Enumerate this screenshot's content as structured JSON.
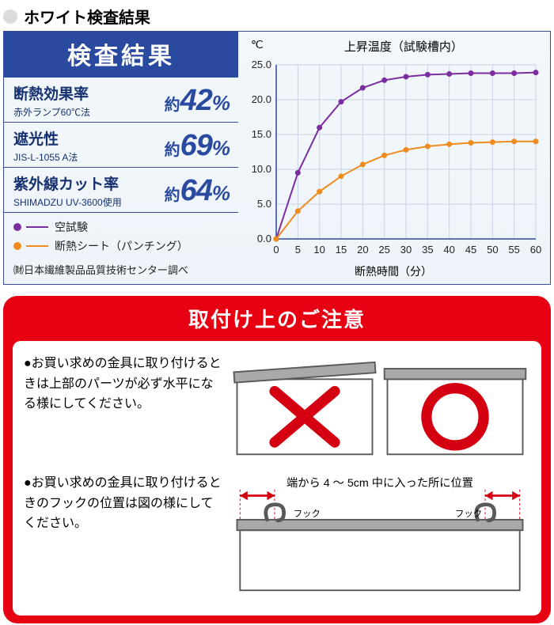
{
  "header": {
    "title": "ホワイト検査結果"
  },
  "inspect": {
    "panel_title": "検査結果",
    "title_bg": "#2a4aa0",
    "title_color": "#ffffff",
    "border_color": "#3a4a9a",
    "stats": [
      {
        "label": "断熱効果率",
        "sub": "赤外ランプ60℃法",
        "prefix": "約",
        "value": "42",
        "suffix": "%"
      },
      {
        "label": "遮光性",
        "sub": "JIS-L-1055 A法",
        "prefix": "約",
        "value": "69",
        "suffix": "%"
      },
      {
        "label": "紫外線カット率",
        "sub": "SHIMADZU UV-3600使用",
        "prefix": "約",
        "value": "64",
        "suffix": "%"
      }
    ],
    "legend": [
      {
        "label": "空試験",
        "color": "#7a2ea0"
      },
      {
        "label": "断熱シート（パンチング）",
        "color": "#ef8b1f"
      }
    ],
    "source": "㈶日本繊維製品品質技術センター調べ"
  },
  "chart": {
    "type": "line",
    "title": "上昇温度（試験槽内）",
    "xaxis_label": "断熱時間（分）",
    "y_unit": "℃",
    "x_ticks": [
      0,
      5,
      10,
      15,
      20,
      25,
      30,
      35,
      40,
      45,
      50,
      55,
      60
    ],
    "y_ticks": [
      0.0,
      5.0,
      10.0,
      15.0,
      20.0,
      25.0
    ],
    "xlim": [
      0,
      60
    ],
    "ylim": [
      0,
      25
    ],
    "grid_color": "#c8d2e6",
    "axis_color": "#2a4aa0",
    "marker_radius": 3.5,
    "line_width": 2,
    "series": [
      {
        "name": "空試験",
        "color": "#7a2ea0",
        "x": [
          0,
          5,
          10,
          15,
          20,
          25,
          30,
          35,
          40,
          45,
          50,
          55,
          60
        ],
        "y": [
          0,
          9.5,
          16.0,
          19.7,
          21.7,
          22.8,
          23.3,
          23.6,
          23.7,
          23.8,
          23.8,
          23.8,
          23.9
        ]
      },
      {
        "name": "断熱シート",
        "color": "#ef8b1f",
        "x": [
          0,
          5,
          10,
          15,
          20,
          25,
          30,
          35,
          40,
          45,
          50,
          55,
          60
        ],
        "y": [
          0,
          4.0,
          6.8,
          9.0,
          10.7,
          12.0,
          12.8,
          13.3,
          13.6,
          13.8,
          13.9,
          14.0,
          14.0
        ]
      }
    ],
    "tick_fontsize": 13,
    "title_fontsize": 15
  },
  "caution": {
    "title": "取付け上のご注意",
    "bg": "#e60012",
    "radius": 18,
    "items": [
      "お買い求めの金具に取り付けるときは上部のパーツが必ず水平になる様にしてください。",
      "お買い求めの金具に取り付けるときのフックの位置は図の様にしてください。"
    ],
    "fig1": {
      "cross_color": "#d40011",
      "circle_color": "#d40011",
      "line_color": "#595959",
      "bar_color": "#a9a9a9"
    },
    "fig2": {
      "caption": "端から 4 ～ 5cm 中に入った所に位置",
      "hook_label": "フック",
      "arrow_color": "#d40011",
      "line_color": "#595959",
      "bar_color": "#a9a9a9"
    }
  }
}
